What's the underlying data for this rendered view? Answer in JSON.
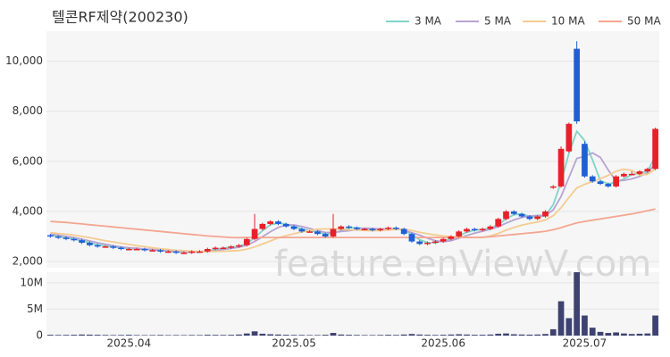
{
  "chart_data": {
    "type": "candlestick",
    "title": "텔콘RF제약(200230)",
    "watermark": "feature.enViewV.com",
    "up_color": "#e8202a",
    "down_color": "#1f5fd6",
    "volume_color": "#3d4270",
    "grid": true,
    "categories": [
      null,
      null,
      null,
      null,
      null,
      null,
      null,
      null,
      null,
      null,
      "2025.04",
      null,
      null,
      null,
      null,
      null,
      null,
      null,
      null,
      null,
      null,
      null,
      null,
      null,
      null,
      null,
      null,
      null,
      null,
      null,
      null,
      "2025.05",
      null,
      null,
      null,
      null,
      null,
      null,
      null,
      null,
      null,
      null,
      null,
      null,
      null,
      null,
      null,
      null,
      null,
      null,
      "2025.06",
      null,
      null,
      null,
      null,
      null,
      null,
      null,
      null,
      null,
      null,
      null,
      null,
      null,
      null,
      null,
      null,
      null,
      "2025.07",
      null,
      null,
      null,
      null,
      null,
      null,
      null,
      null,
      null
    ],
    "open": [
      3050,
      3000,
      2950,
      2900,
      2850,
      2750,
      2650,
      2600,
      2600,
      2550,
      2500,
      2500,
      2500,
      2450,
      2450,
      2400,
      2400,
      2350,
      2350,
      2400,
      2400,
      2500,
      2550,
      2550,
      2600,
      2650,
      2900,
      3300,
      3500,
      3600,
      3500,
      3400,
      3300,
      3200,
      3200,
      3100,
      3000,
      3300,
      3400,
      3350,
      3300,
      3300,
      3250,
      3300,
      3350,
      3300,
      3100,
      2800,
      2700,
      2750,
      2800,
      2900,
      3000,
      3200,
      3300,
      3250,
      3300,
      3400,
      3700,
      4000,
      3900,
      3800,
      3700,
      3800,
      4950,
      5000,
      6400,
      10500,
      6700,
      5400,
      5200,
      5100,
      5000,
      5400,
      5500,
      5500,
      5600,
      5700
    ],
    "high": [
      3100,
      3050,
      3000,
      2950,
      2900,
      2800,
      2700,
      2650,
      2650,
      2600,
      2550,
      2550,
      2550,
      2500,
      2500,
      2450,
      2450,
      2400,
      2450,
      2450,
      2550,
      2600,
      2600,
      2650,
      2700,
      2950,
      3900,
      3550,
      3650,
      3650,
      3550,
      3450,
      3350,
      3250,
      3250,
      3150,
      3900,
      3450,
      3450,
      3400,
      3350,
      3350,
      3350,
      3400,
      3400,
      3350,
      3150,
      2850,
      2800,
      2850,
      2950,
      3050,
      3250,
      3350,
      3350,
      3350,
      3450,
      3750,
      4050,
      4050,
      3950,
      3850,
      3850,
      4050,
      5050,
      6600,
      7550,
      10800,
      6800,
      5450,
      5250,
      5150,
      5450,
      5550,
      5600,
      5650,
      5750,
      7350
    ],
    "low": [
      2950,
      2900,
      2850,
      2800,
      2700,
      2600,
      2550,
      2550,
      2500,
      2450,
      2450,
      2450,
      2400,
      2400,
      2350,
      2350,
      2300,
      2300,
      2300,
      2350,
      2350,
      2450,
      2500,
      2500,
      2550,
      2600,
      2850,
      3250,
      3450,
      3450,
      3350,
      3250,
      3150,
      3150,
      3050,
      2950,
      2950,
      3250,
      3300,
      3250,
      3250,
      3200,
      3200,
      3250,
      3250,
      3050,
      2750,
      2650,
      2650,
      2700,
      2750,
      2850,
      2950,
      3150,
      3200,
      3200,
      3250,
      3350,
      3650,
      3850,
      3750,
      3650,
      3650,
      3750,
      4900,
      4950,
      6350,
      7500,
      5350,
      5150,
      5050,
      4950,
      4950,
      5350,
      5450,
      5450,
      5550,
      5650
    ],
    "close": [
      3000,
      2950,
      2900,
      2850,
      2750,
      2650,
      2600,
      2600,
      2550,
      2500,
      2500,
      2500,
      2450,
      2450,
      2400,
      2400,
      2350,
      2350,
      2400,
      2400,
      2500,
      2550,
      2550,
      2600,
      2650,
      2900,
      3300,
      3500,
      3600,
      3500,
      3400,
      3300,
      3200,
      3200,
      3100,
      3000,
      3300,
      3400,
      3350,
      3300,
      3300,
      3250,
      3300,
      3350,
      3300,
      3100,
      2800,
      2700,
      2750,
      2800,
      2900,
      3000,
      3200,
      3300,
      3250,
      3300,
      3400,
      3700,
      4000,
      3900,
      3800,
      3700,
      3800,
      4000,
      5000,
      6500,
      7500,
      7600,
      5400,
      5200,
      5100,
      5000,
      5400,
      5500,
      5500,
      5600,
      5700,
      7300
    ],
    "volume": [
      150000,
      120000,
      130000,
      150000,
      200000,
      180000,
      150000,
      120000,
      100000,
      120000,
      150000,
      100000,
      90000,
      100000,
      120000,
      90000,
      100000,
      90000,
      110000,
      100000,
      150000,
      130000,
      120000,
      140000,
      200000,
      400000,
      800000,
      350000,
      250000,
      200000,
      150000,
      120000,
      120000,
      100000,
      100000,
      150000,
      500000,
      200000,
      150000,
      120000,
      100000,
      100000,
      120000,
      150000,
      120000,
      200000,
      300000,
      200000,
      150000,
      120000,
      150000,
      200000,
      250000,
      200000,
      150000,
      150000,
      200000,
      350000,
      400000,
      250000,
      200000,
      180000,
      200000,
      300000,
      1200000,
      6500000,
      3300000,
      12000000,
      3800000,
      1500000,
      700000,
      500000,
      600000,
      400000,
      300000,
      350000,
      400000,
      3800000
    ],
    "series": [
      {
        "name": "3 MA",
        "color": "#80d4c8",
        "values": [
          3050,
          3000,
          2950,
          2900,
          2830,
          2750,
          2670,
          2620,
          2580,
          2550,
          2520,
          2500,
          2480,
          2470,
          2430,
          2420,
          2380,
          2370,
          2370,
          2380,
          2430,
          2480,
          2530,
          2570,
          2600,
          2720,
          2950,
          3230,
          3470,
          3530,
          3500,
          3400,
          3300,
          3230,
          3170,
          3100,
          3130,
          3230,
          3350,
          3350,
          3320,
          3280,
          3280,
          3300,
          3320,
          3250,
          3070,
          2870,
          2750,
          2750,
          2820,
          2900,
          3030,
          3170,
          3250,
          3280,
          3320,
          3470,
          3700,
          3870,
          3900,
          3800,
          3770,
          3830,
          4270,
          5170,
          6330,
          7200,
          6830,
          6070,
          5230,
          5100,
          5170,
          5300,
          5470,
          5530,
          5600,
          6200
        ]
      },
      {
        "name": "5 MA",
        "color": "#b7a3d3",
        "values": [
          3100,
          3050,
          3000,
          2950,
          2890,
          2820,
          2750,
          2690,
          2630,
          2580,
          2550,
          2530,
          2500,
          2480,
          2460,
          2440,
          2410,
          2390,
          2380,
          2380,
          2410,
          2440,
          2480,
          2520,
          2570,
          2650,
          2800,
          2990,
          3190,
          3360,
          3460,
          3460,
          3400,
          3320,
          3240,
          3160,
          3160,
          3200,
          3230,
          3270,
          3330,
          3320,
          3300,
          3300,
          3300,
          3260,
          3150,
          3050,
          2930,
          2830,
          2790,
          2830,
          2930,
          3040,
          3130,
          3210,
          3290,
          3390,
          3530,
          3660,
          3760,
          3820,
          3840,
          3840,
          4060,
          4600,
          5360,
          6120,
          6200,
          6340,
          6160,
          5660,
          5220,
          5240,
          5300,
          5400,
          5540,
          5920
        ]
      },
      {
        "name": "10 MA",
        "color": "#f3cc90",
        "values": [
          3150,
          3120,
          3090,
          3050,
          3000,
          2950,
          2890,
          2830,
          2780,
          2730,
          2680,
          2630,
          2590,
          2550,
          2510,
          2480,
          2450,
          2430,
          2410,
          2400,
          2400,
          2400,
          2410,
          2420,
          2440,
          2490,
          2580,
          2700,
          2820,
          2940,
          3030,
          3110,
          3180,
          3240,
          3290,
          3300,
          3300,
          3290,
          3270,
          3250,
          3240,
          3230,
          3240,
          3260,
          3280,
          3290,
          3240,
          3170,
          3110,
          3060,
          3020,
          2990,
          2980,
          2970,
          2960,
          2960,
          3020,
          3120,
          3250,
          3360,
          3450,
          3520,
          3580,
          3660,
          3830,
          4150,
          4560,
          4940,
          5080,
          5190,
          5310,
          5440,
          5600,
          5690,
          5640,
          5450,
          5480,
          5690
        ]
      },
      {
        "name": "50 MA",
        "color": "#f4a590",
        "values": [
          3600,
          3580,
          3560,
          3530,
          3500,
          3470,
          3440,
          3410,
          3380,
          3350,
          3320,
          3290,
          3260,
          3230,
          3200,
          3170,
          3140,
          3110,
          3080,
          3050,
          3020,
          3000,
          2980,
          2960,
          2950,
          2960,
          2960,
          2960,
          2960,
          2960,
          2960,
          2960,
          2960,
          2960,
          2960,
          2960,
          2960,
          2960,
          2960,
          2960,
          2960,
          2960,
          2960,
          2960,
          2960,
          2960,
          2960,
          2960,
          2960,
          2960,
          2960,
          2960,
          2960,
          2960,
          2960,
          2970,
          2990,
          3020,
          3050,
          3080,
          3110,
          3140,
          3170,
          3210,
          3270,
          3350,
          3450,
          3540,
          3600,
          3650,
          3700,
          3750,
          3800,
          3850,
          3900,
          3960,
          4030,
          4100
        ]
      }
    ],
    "ylim": [
      1750,
      11200
    ],
    "yticks": [
      {
        "value": 2000,
        "label": "2,000"
      },
      {
        "value": 4000,
        "label": "4,000"
      },
      {
        "value": 6000,
        "label": "6,000"
      },
      {
        "value": 8000,
        "label": "8,000"
      },
      {
        "value": 10000,
        "label": "10,000"
      }
    ],
    "y2lim": [
      0,
      12000000
    ],
    "y2ticks": [
      0,
      {
        "value": 5000000,
        "label": "5M"
      },
      {
        "value": 10000000,
        "label": "10M"
      }
    ]
  }
}
